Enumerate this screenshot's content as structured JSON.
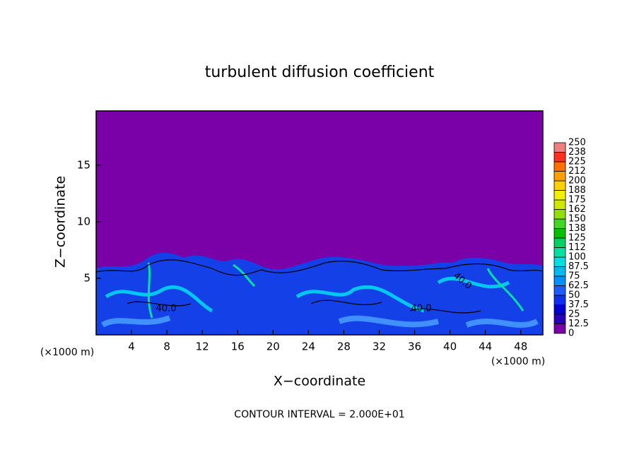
{
  "chart_data": {
    "type": "contour",
    "title": "turbulent diffusion coefficient",
    "x_label": "X−coordinate",
    "y_label": "Z−coordinate",
    "x_unit": "(×1000 m)",
    "y_unit": "(×1000 m)",
    "footer": "CONTOUR INTERVAL = 2.000E+01",
    "annotations": [
      "40.0",
      "40.0",
      "40.0"
    ],
    "xlim": [
      0,
      50.5
    ],
    "xticks": [
      4,
      8,
      12,
      16,
      20,
      24,
      28,
      32,
      36,
      40,
      44,
      48
    ],
    "ylim": [
      0,
      19.8
    ],
    "yticks": [
      5,
      10,
      15
    ],
    "colorbar": {
      "levels": [
        0,
        12.5,
        25,
        37.5,
        50,
        62.5,
        75,
        87.5,
        100,
        112,
        125,
        138,
        150,
        162,
        175,
        188,
        200,
        212,
        225,
        238,
        250
      ],
      "colors": [
        "#7a00a8",
        "#2a00b8",
        "#0000d0",
        "#0a30f0",
        "#1a5cff",
        "#0090ff",
        "#00b8f0",
        "#00e0e0",
        "#00e0a0",
        "#00d060",
        "#00c000",
        "#40d820",
        "#90e000",
        "#d0e800",
        "#f0f000",
        "#ffd000",
        "#ffa000",
        "#ff7000",
        "#ff3020",
        "#f08080"
      ]
    }
  }
}
